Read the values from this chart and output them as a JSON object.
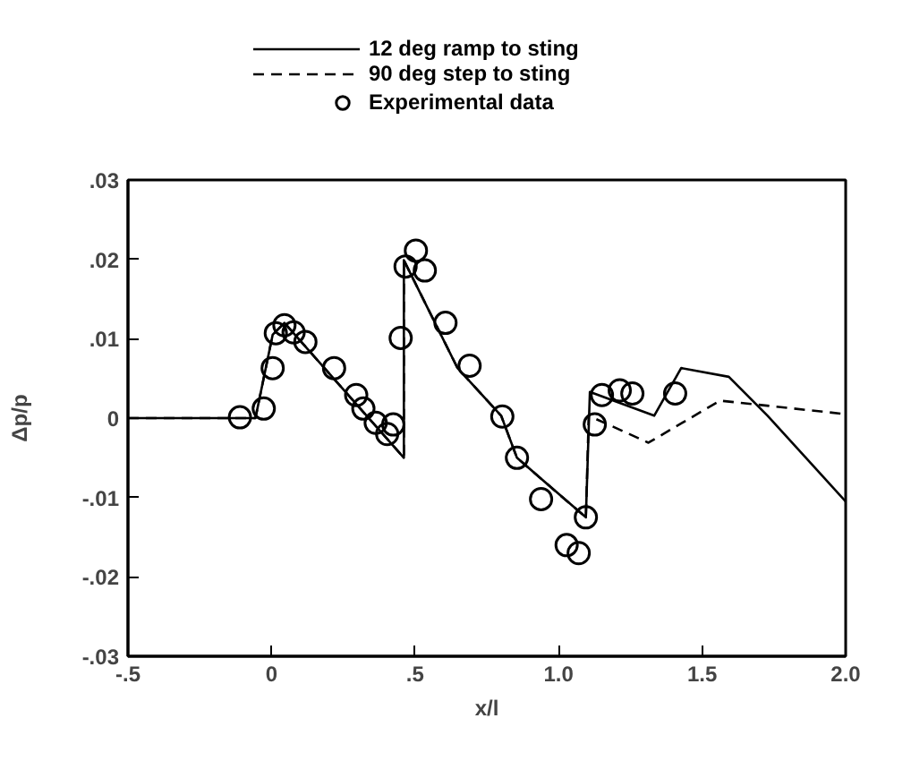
{
  "chart_data": {
    "type": "line",
    "xlabel": "x/l",
    "ylabel": "Δp/p",
    "xlim": [
      -0.5,
      2.0
    ],
    "ylim": [
      -0.03,
      0.03
    ],
    "xticks": [
      {
        "value": -0.5,
        "label": "-.5"
      },
      0,
      {
        "value": 0.5,
        "label": ".5"
      },
      {
        "value": 1.0,
        "label": "1.0"
      },
      {
        "value": 1.5,
        "label": "1.5"
      },
      {
        "value": 2.0,
        "label": "2.0"
      }
    ],
    "yticks": [
      {
        "value": -0.03,
        "label": "-.03"
      },
      {
        "value": -0.02,
        "label": "-.02"
      },
      {
        "value": -0.01,
        "label": "-.01"
      },
      0,
      {
        "value": 0.01,
        "label": ".01"
      },
      {
        "value": 0.02,
        "label": ".02"
      },
      {
        "value": 0.03,
        "label": ".03"
      }
    ],
    "grid": false,
    "legend": "top",
    "marker": "none",
    "series": [
      {
        "name": "12 deg ramp to sting",
        "color": "#000000",
        "line_style": "solid",
        "x": [
          -0.5,
          -0.056,
          0.004,
          0.045,
          0.461,
          0.461,
          0.648,
          0.8,
          0.855,
          0.96,
          1.095,
          1.109,
          1.333,
          1.427,
          1.593,
          1.728,
          2.0
        ],
        "values": [
          0,
          0,
          0.0105,
          0.012,
          -0.005,
          0.0199,
          0.0063,
          0.0003,
          -0.005,
          -0.0083,
          -0.0125,
          0.0033,
          0.0003,
          0.0063,
          0.0052,
          0.0003,
          -0.0105
        ]
      },
      {
        "name": "90 deg step to sting",
        "color": "#000000",
        "line_style": "dashed",
        "x": [
          -0.5,
          -0.056,
          0.004,
          0.045,
          0.461,
          0.461,
          0.648,
          0.8,
          0.855,
          0.96,
          1.095,
          1.105,
          1.313,
          1.562,
          2.0
        ],
        "values": [
          0,
          0,
          0.0105,
          0.012,
          -0.005,
          0.0199,
          0.0063,
          0.0003,
          -0.005,
          -0.0083,
          -0.0125,
          0.0003,
          -0.0031,
          0.0022,
          0.0005
        ]
      },
      {
        "name": "Experimental data",
        "type": "scatter",
        "marker": "circle",
        "color": "#000000",
        "x": [
          -0.11,
          -0.027,
          0.004,
          0.015,
          0.045,
          0.077,
          0.118,
          0.218,
          0.295,
          0.32,
          0.363,
          0.403,
          0.424,
          0.45,
          0.467,
          0.503,
          0.534,
          0.606,
          0.69,
          0.804,
          0.855,
          0.939,
          1.028,
          1.07,
          1.095,
          1.126,
          1.151,
          1.213,
          1.257,
          1.406
        ],
        "values": [
          0.0001,
          0.0012,
          0.0063,
          0.0107,
          0.0117,
          0.0108,
          0.0096,
          0.0063,
          0.0029,
          0.0012,
          -0.0006,
          -0.002,
          -0.0008,
          0.0101,
          0.0191,
          0.0211,
          0.0186,
          0.012,
          0.0066,
          0.0002,
          -0.005,
          -0.0102,
          -0.016,
          -0.017,
          -0.0125,
          -0.0008,
          0.0029,
          0.0035,
          0.0031,
          0.0031
        ]
      }
    ]
  }
}
